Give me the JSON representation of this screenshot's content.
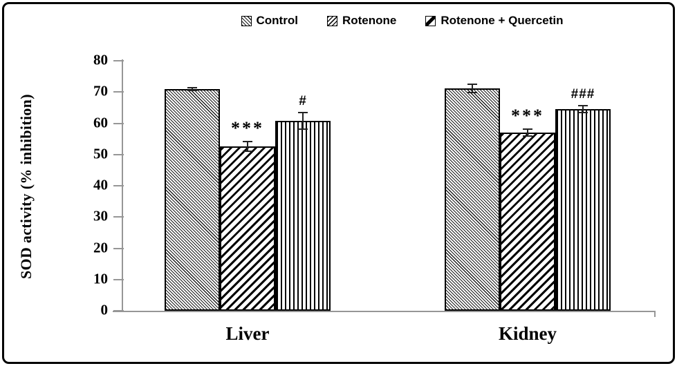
{
  "figure": {
    "background": "#ffffff",
    "border_color": "#000000",
    "axis_color": "#969696",
    "bar_outline_color": "#000000"
  },
  "legend": {
    "position": "top",
    "items": [
      {
        "label": "Control",
        "swatch": "backslash-hatch-pattern"
      },
      {
        "label": "Rotenone",
        "swatch": "forward-hatch-pattern"
      },
      {
        "label": "Rotenone + Quercetin",
        "swatch": "diagonal-band-pattern"
      }
    ]
  },
  "chart_data": {
    "type": "bar",
    "title": "",
    "xlabel": "",
    "ylabel": "SOD activity (% inhibition)",
    "ylim": [
      0,
      80
    ],
    "yticks": [
      0,
      10,
      20,
      30,
      40,
      50,
      60,
      70,
      80
    ],
    "grid": false,
    "legend_position": "top",
    "categories": [
      "Liver",
      "Kidney"
    ],
    "series": [
      {
        "name": "Control",
        "pattern": "backslash-hatch",
        "values": [
          71.0,
          71.2
        ],
        "errors": [
          0.4,
          1.3
        ],
        "annotations": [
          "",
          ""
        ]
      },
      {
        "name": "Rotenone",
        "pattern": "forward-hatch",
        "values": [
          52.6,
          57.0
        ],
        "errors": [
          1.5,
          1.1
        ],
        "annotations": [
          "***",
          "***"
        ]
      },
      {
        "name": "Rotenone + Quercetin",
        "pattern": "vertical-stripes",
        "values": [
          60.8,
          64.5
        ],
        "errors": [
          2.6,
          1.1
        ],
        "annotations": [
          "#",
          "###"
        ]
      }
    ]
  }
}
